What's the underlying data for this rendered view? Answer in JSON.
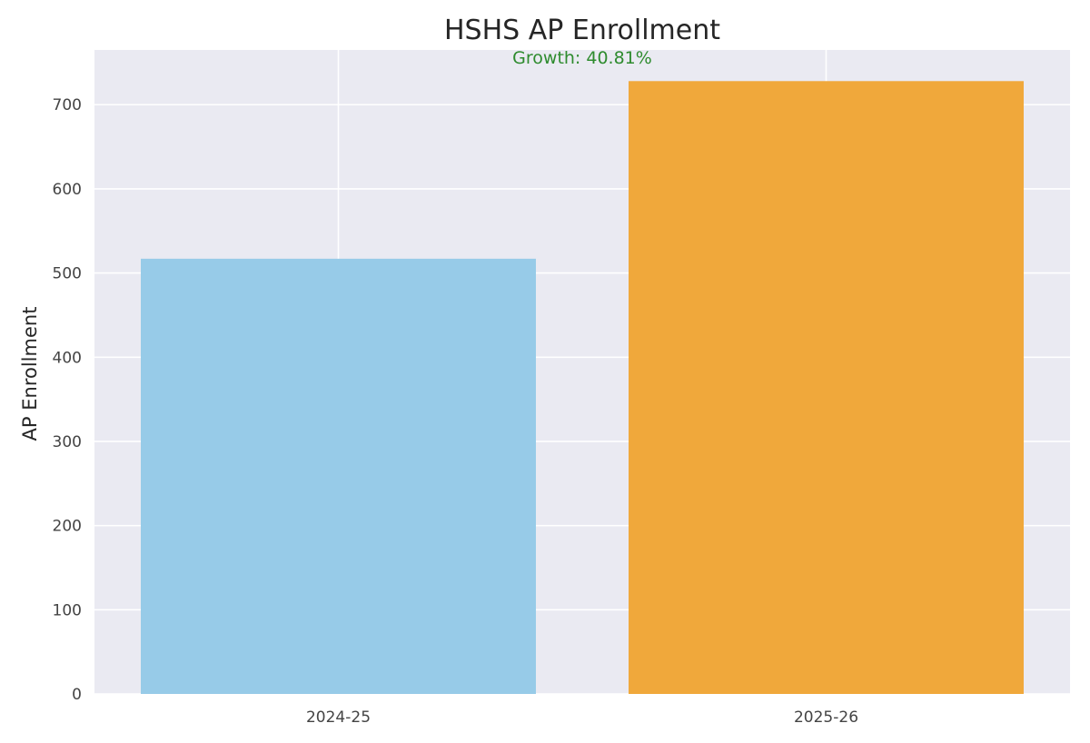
{
  "chart_data": {
    "type": "bar",
    "title": "HSHS AP Enrollment",
    "annotation": "Growth: 40.81%",
    "xlabel": "",
    "ylabel": "AP Enrollment",
    "categories": [
      "2024-25",
      "2025-26"
    ],
    "values": [
      517,
      728
    ],
    "ylim": [
      0,
      765
    ],
    "yticks": [
      0,
      100,
      200,
      300,
      400,
      500,
      600,
      700
    ],
    "grid": true,
    "legend": "none",
    "colors": {
      "bars": [
        "#97cbe8",
        "#f0a83b"
      ],
      "plot_background": "#eaeaf2",
      "grid": "#ffffff",
      "annotation": "#2e8b2e"
    }
  }
}
